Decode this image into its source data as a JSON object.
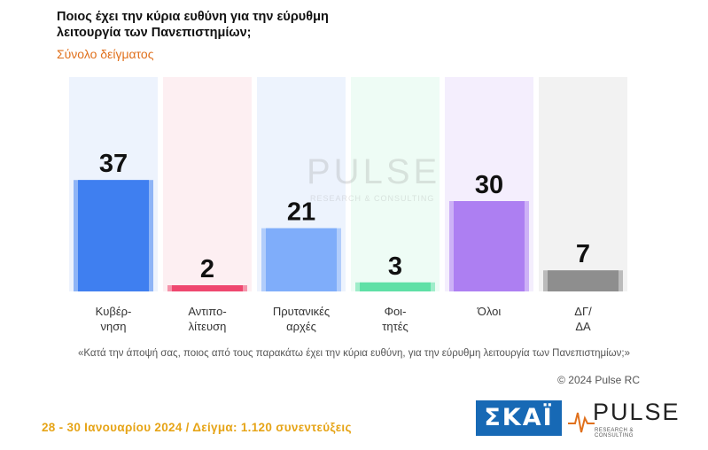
{
  "header": {
    "title_line1": "Ποιος έχει την κύρια ευθύνη για την εύρυθμη",
    "title_line2": "λειτουργία των Πανεπιστημίων;",
    "subtitle": "Σύνολο δείγματος"
  },
  "chart_data": {
    "type": "bar",
    "categories": [
      [
        "Κυβέρ-",
        "νηση"
      ],
      [
        "Αντιπο-",
        "λίτευση"
      ],
      [
        "Πρυτανικές",
        "αρχές"
      ],
      [
        "Φοι-",
        "τητές"
      ],
      [
        "Όλοι"
      ],
      [
        "ΔΓ/",
        "ΔΑ"
      ]
    ],
    "values": [
      37,
      2,
      21,
      3,
      30,
      7
    ],
    "colors": [
      "#3f7ff0",
      "#ef476f",
      "#7fadfa",
      "#5fe0a6",
      "#ad7ff2",
      "#8e8e8e"
    ],
    "bg_colors": [
      "#edf3fd",
      "#fdeff2",
      "#edf3fd",
      "#eefcf5",
      "#f4eefd",
      "#f2f2f2"
    ],
    "ylim": [
      0,
      60
    ],
    "grid": false,
    "legend": "none"
  },
  "watermark": {
    "word": "PULSE",
    "sub": "RESEARCH & CONSULTING"
  },
  "question": "«Κατά την άποψή σας, ποιος από τους παρακάτω έχει την κύρια ευθύνη, για την εύρυθμη λειτουργία των Πανεπιστημίων;»",
  "copyright": "© 2024 Pulse RC",
  "footer": "28 - 30 Ιανουαρίου  2024  /  Δείγμα:  1.120 συνεντεύξεις",
  "logos": {
    "skai": "ΣΚΑΪ",
    "pulse_word": "PULSE",
    "pulse_sub": "RESEARCH & CONSULTING"
  }
}
